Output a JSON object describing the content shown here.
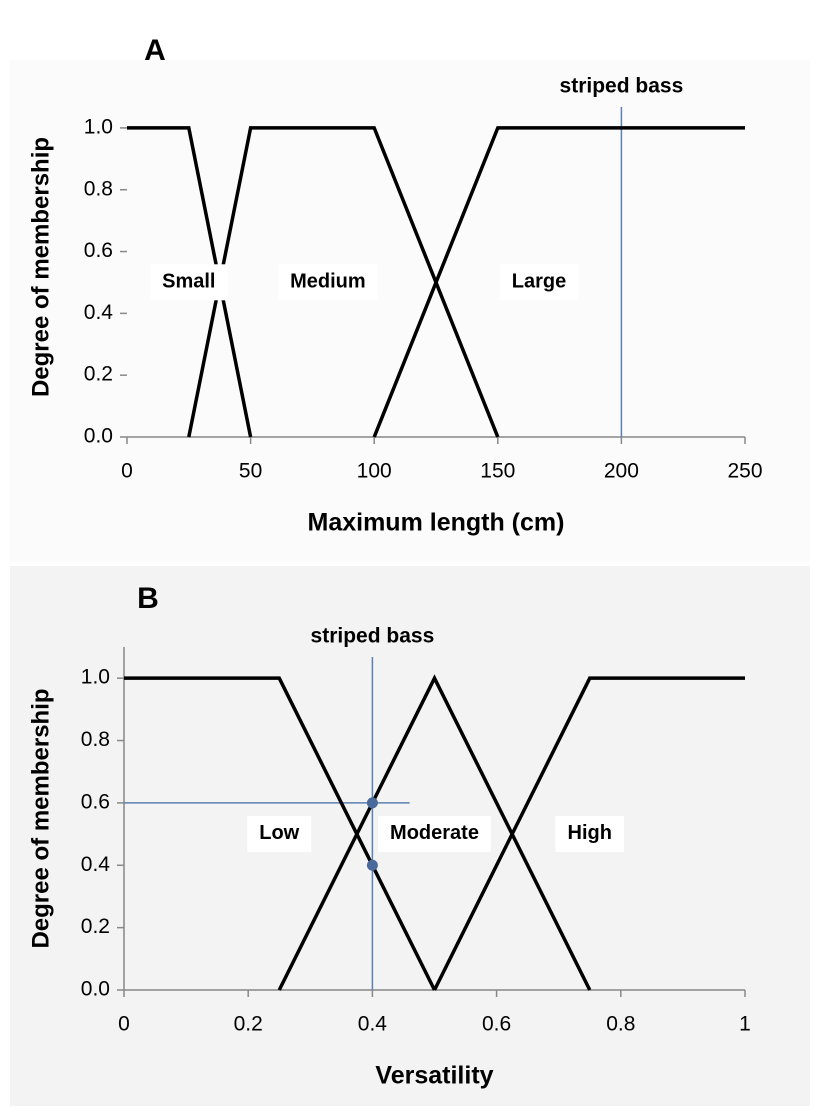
{
  "chart_data": [
    {
      "type": "line",
      "panel_label": "A",
      "ylabel": "Degree of membership",
      "xlabel": "Maximum length (cm)",
      "xlim": [
        0,
        250
      ],
      "xticks": [
        0,
        50,
        100,
        150,
        200,
        250
      ],
      "ylim": [
        0,
        1.1
      ],
      "yticks": [
        {
          "value": 0,
          "label": "0.0"
        },
        0.2,
        0.4,
        0.6,
        0.8,
        {
          "value": 1,
          "label": "1.0"
        }
      ],
      "series": [
        {
          "name": "Small",
          "color": "#000000",
          "x": [
            0,
            25,
            50
          ],
          "values": [
            1,
            1,
            0
          ]
        },
        {
          "name": "Medium",
          "color": "#000000",
          "x": [
            25,
            50,
            100,
            150
          ],
          "values": [
            0,
            1,
            1,
            0
          ]
        },
        {
          "name": "Large",
          "color": "#000000",
          "x": [
            100,
            150,
            250
          ],
          "values": [
            0,
            1,
            1
          ]
        }
      ],
      "annotation": {
        "text": "striped bass",
        "x": 200,
        "color": "#5b80b2"
      }
    },
    {
      "type": "line",
      "panel_label": "B",
      "ylabel": "Degree of membership",
      "xlabel": "Versatility",
      "xlim": [
        0,
        1
      ],
      "xticks": [
        0,
        0.2,
        0.4,
        0.6,
        0.8,
        1
      ],
      "ylim": [
        0,
        1.1
      ],
      "yticks": [
        {
          "value": 0,
          "label": "0.0"
        },
        0.2,
        0.4,
        0.6,
        0.8,
        {
          "value": 1,
          "label": "1.0"
        }
      ],
      "series": [
        {
          "name": "Low",
          "color": "#000000",
          "x": [
            0,
            0.25,
            0.5
          ],
          "values": [
            1,
            1,
            0
          ]
        },
        {
          "name": "Moderate",
          "color": "#000000",
          "x": [
            0.25,
            0.5,
            0.75
          ],
          "values": [
            0,
            1,
            0
          ]
        },
        {
          "name": "High",
          "color": "#000000",
          "x": [
            0.5,
            0.75,
            1
          ],
          "values": [
            0,
            1,
            1
          ]
        }
      ],
      "annotation": {
        "text": "striped bass",
        "x": 0.4,
        "y": 0.6,
        "color": "#5b80b2"
      },
      "points": {
        "x": [
          0.4,
          0.4
        ],
        "values": [
          0.6,
          0.4
        ],
        "color": "#4a6a9c"
      }
    }
  ]
}
